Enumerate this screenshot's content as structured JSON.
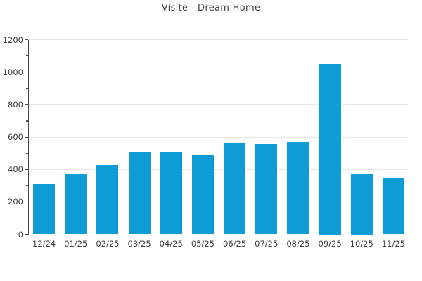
{
  "chart_data": {
    "type": "bar",
    "title": "Visite - Dream Home",
    "categories": [
      "12/24",
      "01/25",
      "02/25",
      "03/25",
      "04/25",
      "05/25",
      "06/25",
      "07/25",
      "08/25",
      "09/25",
      "10/25",
      "11/25"
    ],
    "values": [
      310,
      370,
      425,
      505,
      510,
      490,
      565,
      555,
      570,
      1050,
      375,
      350
    ],
    "xlabel": "",
    "ylabel": "",
    "ylim": [
      0,
      1200
    ],
    "y_major_step": 200,
    "y_minor_step": 100,
    "y_tick_labels": [
      "0",
      "200",
      "400",
      "600",
      "800",
      "1000",
      "1200"
    ],
    "grid": "horizontal-major",
    "legend": "none",
    "colors": {
      "bar": "#0E9CD6",
      "axis": "#4a4a4a",
      "grid": "#e6e6e6",
      "text": "#3d3d3d",
      "background": "#ffffff"
    }
  }
}
